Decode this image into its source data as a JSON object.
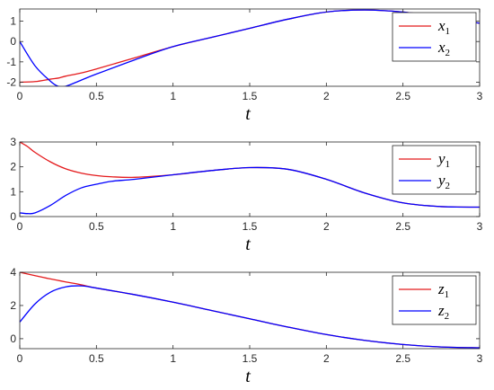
{
  "chart_data": [
    {
      "type": "line",
      "xlabel": "t",
      "xlim": [
        0,
        3
      ],
      "ylim": [
        -2.2,
        1.6
      ],
      "xticks": [
        "0",
        "0.5",
        "1",
        "1.5",
        "2",
        "2.5",
        "3"
      ],
      "yticks": [
        "-2",
        "-1",
        "0",
        "1"
      ],
      "legend_location": "top-right",
      "x": [
        0,
        0.1,
        0.2,
        0.25,
        0.3,
        0.4,
        0.5,
        0.75,
        1.0,
        1.25,
        1.5,
        1.75,
        2.0,
        2.25,
        2.5,
        2.75,
        3.0
      ],
      "series": [
        {
          "name": "x",
          "subscript": "1",
          "color": "#e41a1c",
          "values": [
            -2.0,
            -1.97,
            -1.85,
            -1.8,
            -1.7,
            -1.55,
            -1.35,
            -0.8,
            -0.25,
            0.2,
            0.65,
            1.1,
            1.45,
            1.55,
            1.45,
            1.2,
            0.9
          ]
        },
        {
          "name": "x",
          "subscript": "2",
          "color": "#0000ff",
          "values": [
            0.0,
            -1.2,
            -1.95,
            -2.2,
            -2.2,
            -1.9,
            -1.6,
            -0.9,
            -0.25,
            0.2,
            0.65,
            1.1,
            1.45,
            1.55,
            1.45,
            1.2,
            0.9
          ]
        }
      ]
    },
    {
      "type": "line",
      "xlabel": "t",
      "xlim": [
        0,
        3
      ],
      "ylim": [
        0,
        3
      ],
      "xticks": [
        "0",
        "0.5",
        "1",
        "1.5",
        "2",
        "2.5",
        "3"
      ],
      "yticks": [
        "0",
        "1",
        "2",
        "3"
      ],
      "legend_location": "top-right",
      "x": [
        0,
        0.05,
        0.1,
        0.2,
        0.3,
        0.4,
        0.5,
        0.6,
        0.75,
        1.0,
        1.25,
        1.5,
        1.75,
        2.0,
        2.25,
        2.5,
        2.75,
        3.0
      ],
      "series": [
        {
          "name": "y",
          "subscript": "1",
          "color": "#e41a1c",
          "values": [
            3.0,
            2.82,
            2.58,
            2.2,
            1.92,
            1.75,
            1.65,
            1.6,
            1.58,
            1.68,
            1.85,
            1.97,
            1.9,
            1.5,
            0.95,
            0.55,
            0.4,
            0.38
          ]
        },
        {
          "name": "y",
          "subscript": "2",
          "color": "#0000ff",
          "values": [
            0.15,
            0.12,
            0.15,
            0.45,
            0.85,
            1.15,
            1.3,
            1.42,
            1.5,
            1.68,
            1.85,
            1.97,
            1.9,
            1.5,
            0.95,
            0.55,
            0.4,
            0.38
          ]
        }
      ]
    },
    {
      "type": "line",
      "xlabel": "t",
      "xlim": [
        0,
        3
      ],
      "ylim": [
        -0.6,
        4
      ],
      "xticks": [
        "0",
        "0.5",
        "1",
        "1.5",
        "2",
        "2.5",
        "3"
      ],
      "yticks": [
        "0",
        "2",
        "4"
      ],
      "legend_location": "top-right",
      "x": [
        0,
        0.1,
        0.2,
        0.3,
        0.4,
        0.5,
        0.75,
        1.0,
        1.25,
        1.5,
        1.75,
        2.0,
        2.25,
        2.5,
        2.75,
        3.0
      ],
      "series": [
        {
          "name": "z",
          "subscript": "1",
          "color": "#e41a1c",
          "values": [
            4.0,
            3.8,
            3.6,
            3.42,
            3.25,
            3.05,
            2.65,
            2.2,
            1.7,
            1.2,
            0.7,
            0.25,
            -0.1,
            -0.35,
            -0.5,
            -0.55
          ]
        },
        {
          "name": "z",
          "subscript": "2",
          "color": "#0000ff",
          "values": [
            1.0,
            2.1,
            2.8,
            3.12,
            3.18,
            3.05,
            2.65,
            2.2,
            1.7,
            1.2,
            0.7,
            0.25,
            -0.1,
            -0.35,
            -0.5,
            -0.55
          ]
        }
      ]
    }
  ]
}
